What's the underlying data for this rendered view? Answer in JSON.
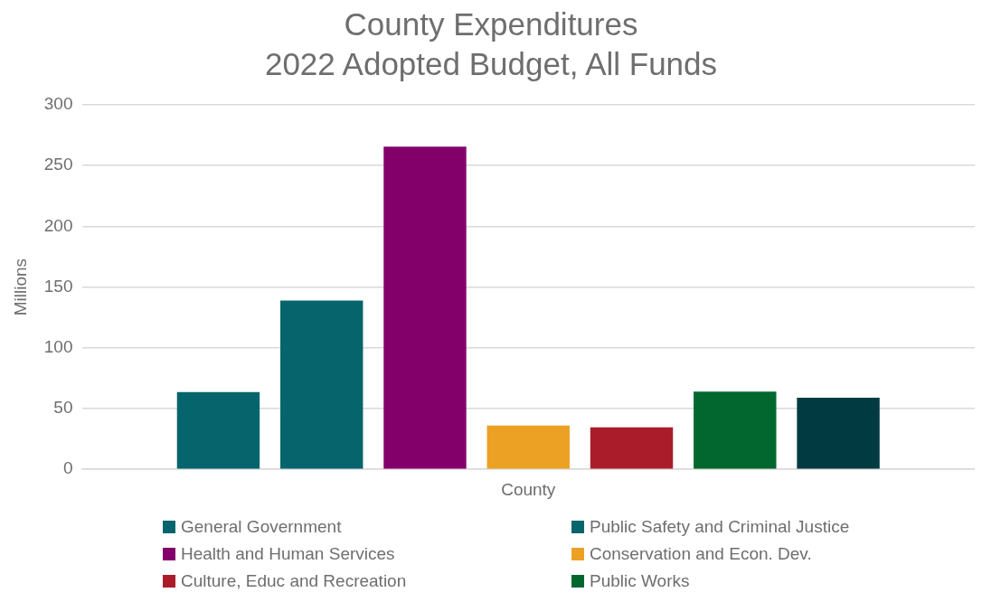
{
  "chart_data": {
    "type": "bar",
    "title": "County Expenditures",
    "subtitle": "2022 Adopted Budget, All Funds",
    "ylabel": "Millions",
    "categories": [
      "County"
    ],
    "series": [
      {
        "name": "General Government",
        "color": "#05646c",
        "values": [
          63.5
        ]
      },
      {
        "name": "Public Safety and Criminal Justice",
        "color": "#05646c",
        "values": [
          139
        ]
      },
      {
        "name": "Health and Human Services",
        "color": "#83006b",
        "values": [
          265.5
        ]
      },
      {
        "name": "Conservation and Econ. Dev.",
        "color": "#eca125",
        "values": [
          36
        ]
      },
      {
        "name": "Culture, Educ and Recreation",
        "color": "#ab1c2b",
        "values": [
          34.5
        ]
      },
      {
        "name": "Public Works",
        "color": "#02672f",
        "values": [
          64
        ]
      },
      {
        "color": "#023a42",
        "values": [
          59
        ]
      }
    ],
    "ylim": [
      0,
      300
    ],
    "yticks": [
      0,
      50,
      100,
      150,
      200,
      250,
      300
    ],
    "grid": "y",
    "legend": "bottom"
  }
}
